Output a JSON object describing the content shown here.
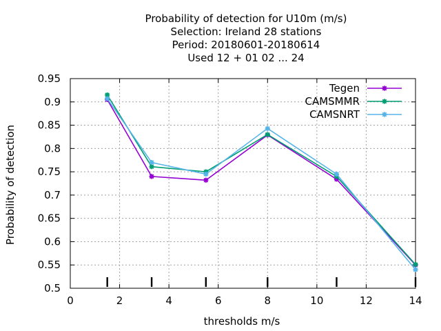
{
  "chart_data": {
    "type": "line",
    "title_lines": [
      "Probability of detection  for U10m (m/s)",
      "Selection: Ireland      28 stations",
      "Period: 20180601-20180614",
      "Used  12 + 01 02 ... 24"
    ],
    "xlabel": "thresholds m/s",
    "ylabel": "Probability of detection",
    "xlim": [
      0,
      14
    ],
    "ylim": [
      0.5,
      0.95
    ],
    "xticks": [
      0,
      2,
      4,
      6,
      8,
      10,
      12,
      14
    ],
    "yticks": [
      0.5,
      0.55,
      0.6,
      0.65,
      0.7,
      0.75,
      0.8,
      0.85,
      0.9,
      0.95
    ],
    "grid": true,
    "legend_position": "top-right",
    "threshold_markers": [
      1.5,
      3.3,
      5.5,
      8.0,
      10.8,
      14.0
    ],
    "series": [
      {
        "name": "Tegen",
        "color": "#9400d3",
        "x": [
          1.5,
          3.3,
          5.5,
          8.0,
          10.8,
          14.0
        ],
        "y": [
          0.905,
          0.74,
          0.732,
          0.829,
          0.734,
          0.55
        ]
      },
      {
        "name": "CAMSMMR",
        "color": "#009e73",
        "x": [
          1.5,
          3.3,
          5.5,
          8.0,
          10.8,
          14.0
        ],
        "y": [
          0.915,
          0.761,
          0.75,
          0.83,
          0.74,
          0.551
        ]
      },
      {
        "name": "CAMSNRT",
        "color": "#56b4e9",
        "x": [
          1.5,
          3.3,
          5.5,
          8.0,
          10.8,
          14.0
        ],
        "y": [
          0.907,
          0.77,
          0.745,
          0.843,
          0.745,
          0.54
        ]
      }
    ]
  }
}
